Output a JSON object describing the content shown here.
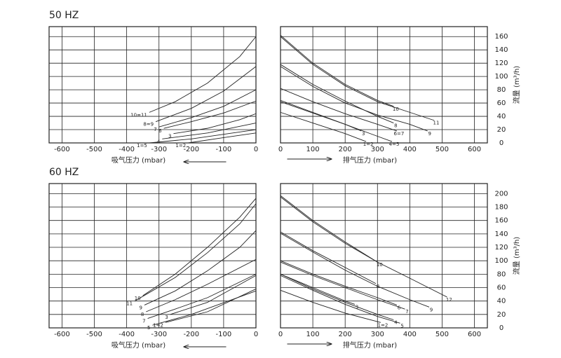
{
  "chart_data": [
    {
      "type": "line",
      "title": "50 HZ",
      "x_label": "吸气压力 (mbar)",
      "label_at": "start",
      "arrow": "left",
      "xlim": [
        -640,
        0
      ],
      "ylim": [
        0,
        175
      ],
      "xticks": [
        -600,
        -500,
        -400,
        -300,
        -200,
        -100,
        0
      ],
      "yticks": [
        0,
        20,
        40,
        60,
        80,
        100,
        120,
        140,
        160
      ],
      "grid": true,
      "series": [
        {
          "name": "10=11",
          "color": "#222",
          "x": [
            -330,
            -250,
            -150,
            -50,
            0
          ],
          "values": [
            46,
            62,
            90,
            130,
            160
          ]
        },
        {
          "name": "8=9",
          "color": "#222",
          "x": [
            -310,
            -200,
            -100,
            0
          ],
          "values": [
            32,
            52,
            78,
            115
          ]
        },
        {
          "name": "7",
          "color": "#222",
          "x": [
            -300,
            -200,
            -100,
            0
          ],
          "values": [
            24,
            38,
            55,
            80
          ]
        },
        {
          "name": "6",
          "color": "#222",
          "x": [
            -285,
            -200,
            -100,
            0
          ],
          "values": [
            22,
            32,
            45,
            63
          ]
        },
        {
          "name": "3",
          "color": "#222",
          "x": [
            -255,
            -150,
            -50,
            0
          ],
          "values": [
            14,
            22,
            35,
            44
          ]
        },
        {
          "name": "4",
          "color": "#222",
          "x": [
            -290,
            -150,
            0
          ],
          "values": [
            6,
            15,
            30
          ]
        },
        {
          "name": "1=5",
          "color": "#222",
          "x": [
            -330,
            -200,
            0
          ],
          "values": [
            0,
            6,
            20
          ]
        },
        {
          "name": "1=2",
          "color": "#222",
          "x": [
            -210,
            -100,
            0
          ],
          "values": [
            0,
            8,
            15
          ]
        }
      ]
    },
    {
      "type": "line",
      "x_label": "排气压力 (mbar)",
      "y_label": "流量 (m³/h)",
      "y_axis_side": "right",
      "label_at": "end",
      "arrow": "right",
      "xlim": [
        0,
        640
      ],
      "ylim": [
        0,
        175
      ],
      "xticks": [
        0,
        100,
        200,
        300,
        400,
        500,
        600
      ],
      "yticks": [
        0,
        20,
        40,
        60,
        80,
        100,
        120,
        140,
        160
      ],
      "grid": true,
      "series": [
        {
          "name": "10",
          "color": "#222",
          "x": [
            0,
            100,
            200,
            300,
            350
          ],
          "values": [
            162,
            120,
            88,
            64,
            55
          ]
        },
        {
          "name": "11",
          "color": "#222",
          "x": [
            0,
            100,
            200,
            300,
            400,
            475
          ],
          "values": [
            160,
            118,
            86,
            62,
            46,
            34
          ]
        },
        {
          "name": "8",
          "color": "#222",
          "x": [
            0,
            100,
            200,
            300,
            350
          ],
          "values": [
            118,
            88,
            63,
            40,
            30
          ]
        },
        {
          "name": "9",
          "color": "#222",
          "x": [
            0,
            100,
            200,
            300,
            400,
            455
          ],
          "values": [
            115,
            85,
            60,
            42,
            28,
            18
          ]
        },
        {
          "name": "6=7",
          "color": "#222",
          "x": [
            0,
            100,
            200,
            300,
            360
          ],
          "values": [
            82,
            62,
            44,
            28,
            18
          ]
        },
        {
          "name": "3",
          "color": "#222",
          "x": [
            0,
            100,
            200,
            250
          ],
          "values": [
            62,
            45,
            28,
            18
          ]
        },
        {
          "name": "4=5",
          "color": "#222",
          "x": [
            0,
            100,
            200,
            300,
            345
          ],
          "values": [
            64,
            46,
            28,
            10,
            2
          ]
        },
        {
          "name": "1=2",
          "color": "#222",
          "x": [
            0,
            100,
            200,
            265
          ],
          "values": [
            46,
            30,
            14,
            2
          ]
        }
      ]
    },
    {
      "type": "line",
      "title": "60 HZ",
      "x_label": "吸气压力 (mbar)",
      "label_at": "start",
      "arrow": "left",
      "xlim": [
        -640,
        0
      ],
      "ylim": [
        0,
        215
      ],
      "xticks": [
        -600,
        -500,
        -400,
        -300,
        -200,
        -100,
        0
      ],
      "yticks": [
        0,
        20,
        40,
        60,
        80,
        100,
        120,
        140,
        160,
        180,
        200
      ],
      "grid": true,
      "series": [
        {
          "name": "10",
          "color": "#222",
          "x": [
            -350,
            -250,
            -150,
            -50,
            0
          ],
          "values": [
            48,
            80,
            120,
            165,
            193
          ]
        },
        {
          "name": "11",
          "color": "#222",
          "x": [
            -375,
            -250,
            -150,
            -50,
            0
          ],
          "values": [
            40,
            75,
            112,
            155,
            185
          ]
        },
        {
          "name": "9",
          "color": "#222",
          "x": [
            -345,
            -250,
            -150,
            -50,
            0
          ],
          "values": [
            34,
            55,
            85,
            120,
            145
          ]
        },
        {
          "name": "8",
          "color": "#222",
          "x": [
            -340,
            -250,
            -150,
            0
          ],
          "values": [
            24,
            42,
            65,
            102
          ]
        },
        {
          "name": "7",
          "color": "#222",
          "x": [
            -335,
            -250,
            -150,
            0
          ],
          "values": [
            14,
            28,
            45,
            80
          ]
        },
        {
          "name": "3",
          "color": "#222",
          "x": [
            -265,
            -150,
            0
          ],
          "values": [
            20,
            38,
            78
          ]
        },
        {
          "name": "5",
          "color": "#222",
          "x": [
            -320,
            -200,
            0
          ],
          "values": [
            4,
            20,
            55
          ]
        },
        {
          "name": "1=2",
          "color": "#222",
          "x": [
            -280,
            -150,
            0
          ],
          "values": [
            8,
            24,
            58
          ]
        }
      ]
    },
    {
      "type": "line",
      "x_label": "排气压力 (mbar)",
      "y_label": "流量 (m³/h)",
      "y_axis_side": "right",
      "label_at": "end",
      "arrow": "right",
      "xlim": [
        0,
        640
      ],
      "ylim": [
        0,
        215
      ],
      "xticks": [
        0,
        100,
        200,
        300,
        400,
        500,
        600
      ],
      "yticks": [
        0,
        20,
        40,
        60,
        80,
        100,
        120,
        140,
        160,
        180,
        200
      ],
      "grid": true,
      "series": [
        {
          "name": "10",
          "color": "#222",
          "x": [
            0,
            100,
            200,
            300
          ],
          "values": [
            197,
            160,
            128,
            98
          ]
        },
        {
          "name": "12",
          "color": "#222",
          "x": [
            0,
            100,
            200,
            300,
            400,
            515
          ],
          "values": [
            195,
            158,
            126,
            98,
            74,
            46
          ]
        },
        {
          "name": "8",
          "color": "#222",
          "x": [
            0,
            100,
            200,
            295
          ],
          "values": [
            143,
            115,
            90,
            66
          ]
        },
        {
          "name": "9",
          "color": "#222",
          "x": [
            0,
            100,
            200,
            300,
            400,
            460
          ],
          "values": [
            141,
            113,
            86,
            62,
            42,
            31
          ]
        },
        {
          "name": "6",
          "color": "#222",
          "x": [
            0,
            100,
            200,
            300,
            360
          ],
          "values": [
            100,
            80,
            62,
            45,
            34
          ]
        },
        {
          "name": "7",
          "color": "#222",
          "x": [
            0,
            100,
            200,
            300,
            385
          ],
          "values": [
            98,
            78,
            60,
            42,
            28
          ]
        },
        {
          "name": "3",
          "color": "#222",
          "x": [
            0,
            100,
            200,
            230
          ],
          "values": [
            80,
            60,
            40,
            35
          ]
        },
        {
          "name": "4",
          "color": "#222",
          "x": [
            0,
            100,
            200,
            300,
            350
          ],
          "values": [
            80,
            58,
            38,
            20,
            12
          ]
        },
        {
          "name": "5",
          "color": "#222",
          "x": [
            0,
            100,
            200,
            300,
            370
          ],
          "values": [
            78,
            56,
            35,
            17,
            7
          ]
        },
        {
          "name": "1=2",
          "color": "#222",
          "x": [
            0,
            100,
            200,
            310
          ],
          "values": [
            56,
            38,
            22,
            8
          ]
        }
      ]
    }
  ]
}
